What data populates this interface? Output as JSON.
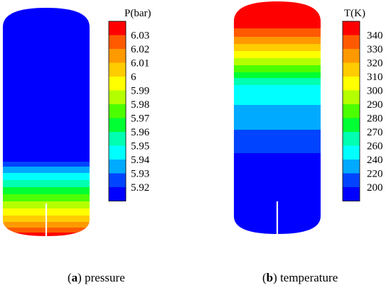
{
  "panels": [
    {
      "id": "a",
      "legend_title": "P(bar)",
      "legend_labels": [
        "6.03",
        "6.02",
        "6.01",
        "6",
        "5.99",
        "5.98",
        "5.97",
        "5.96",
        "5.95",
        "5.94",
        "5.93",
        "5.92"
      ],
      "colors": [
        "#ff0000",
        "#ff5a00",
        "#ff9900",
        "#ffcc00",
        "#ffff00",
        "#b4ff00",
        "#4cff00",
        "#00ff33",
        "#00ffb0",
        "#00ffff",
        "#00aaff",
        "#0044ff",
        "#0000ff"
      ],
      "caption_letter": "a",
      "caption_text": "pressure"
    },
    {
      "id": "b",
      "legend_title": "T(K)",
      "legend_labels": [
        "340",
        "330",
        "320",
        "310",
        "300",
        "290",
        "280",
        "270",
        "260",
        "240",
        "220",
        "200"
      ],
      "colors": [
        "#ff0000",
        "#ff5a00",
        "#ff9900",
        "#ffcc00",
        "#ffff00",
        "#b4ff00",
        "#4cff00",
        "#00ff33",
        "#00ffb0",
        "#00ffff",
        "#00aaff",
        "#0044ff",
        "#0000ff"
      ],
      "caption_letter": "b",
      "caption_text": "temperature"
    }
  ]
}
